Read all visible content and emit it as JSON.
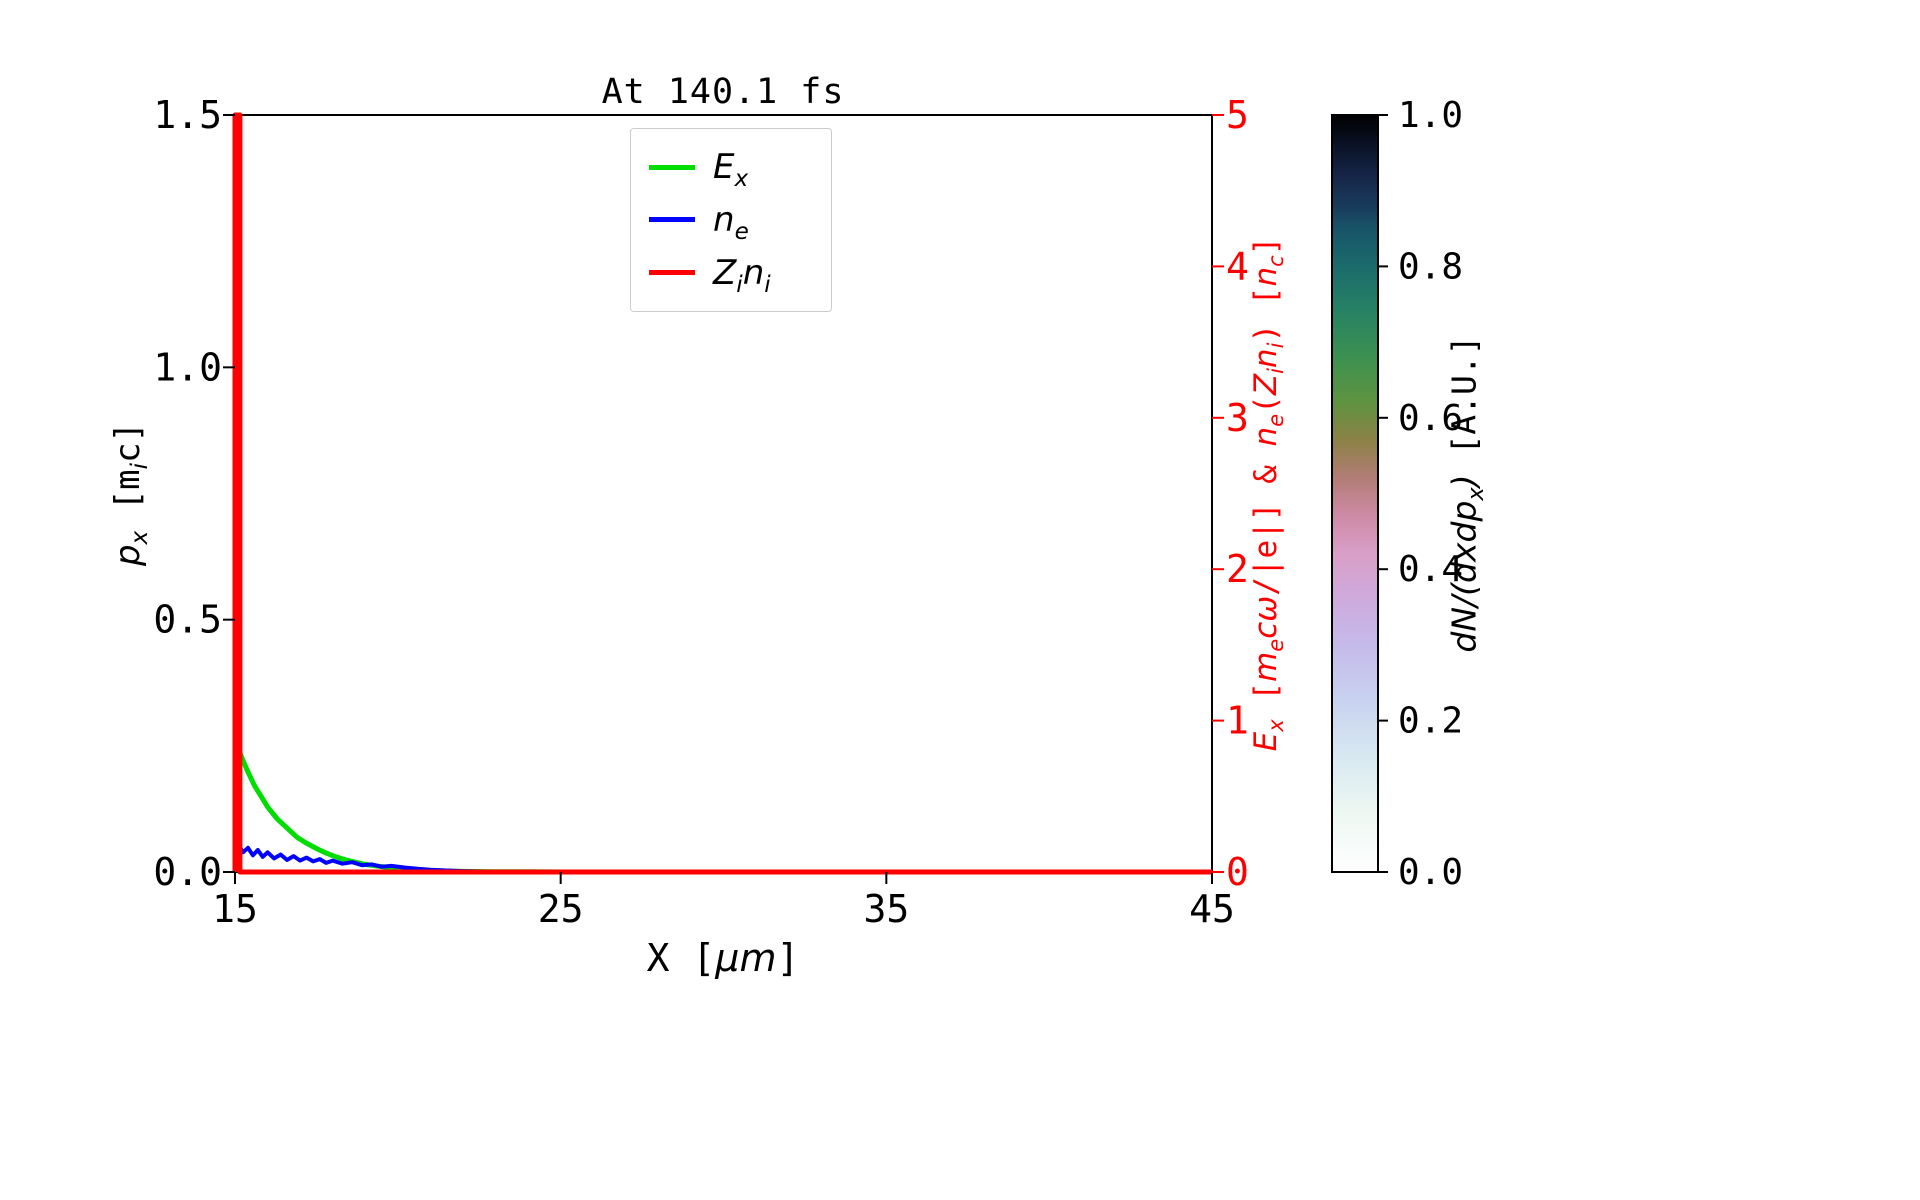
{
  "title": "At 140.1 fs",
  "axes": {
    "x": {
      "lim": [
        15,
        45
      ],
      "ticks": [
        "15",
        "25",
        "35",
        "45"
      ],
      "label_tokens": [
        {
          "t": "X ["
        },
        {
          "t": "μm",
          "i": true
        },
        {
          "t": "]"
        }
      ]
    },
    "y_left": {
      "lim": [
        0,
        1.5
      ],
      "ticks": [
        "0.0",
        "0.5",
        "1.0",
        "1.5"
      ],
      "color": "#000000",
      "label_tokens": [
        {
          "t": "p",
          "i": true,
          "sub": "x"
        },
        {
          "t": " ["
        },
        {
          "t": "m",
          "sub": "i"
        },
        {
          "t": "c]"
        }
      ]
    },
    "y_right": {
      "lim": [
        0,
        5
      ],
      "ticks": [
        "0",
        "1",
        "2",
        "3",
        "4",
        "5"
      ],
      "color": "#ff0000",
      "label_tokens": [
        {
          "t": "E",
          "i": true,
          "sub": "x"
        },
        {
          "t": " ["
        },
        {
          "t": "m",
          "i": true,
          "sub": "e"
        },
        {
          "t": "cω",
          "i": true
        },
        {
          "t": "/|e|] & "
        },
        {
          "t": "n",
          "i": true,
          "sub": "e"
        },
        {
          "t": "("
        },
        {
          "t": "Z",
          "i": true,
          "sub": "i"
        },
        {
          "t": "n",
          "i": true,
          "sub": "i"
        },
        {
          "t": ") ["
        },
        {
          "t": "n",
          "i": true,
          "sub": "c"
        },
        {
          "t": "]"
        }
      ]
    }
  },
  "legend": {
    "entries": [
      {
        "name": "E_x",
        "tokens": [
          {
            "t": "E",
            "i": true,
            "sub": "x"
          }
        ]
      },
      {
        "name": "n_e",
        "tokens": [
          {
            "t": "n",
            "i": true,
            "sub": "e"
          }
        ]
      },
      {
        "name": "Z_i n_i",
        "tokens": [
          {
            "t": "Z",
            "i": true,
            "sub": "i"
          },
          {
            "t": "n",
            "i": true,
            "sub": "i"
          }
        ]
      }
    ]
  },
  "colorbar": {
    "label_tokens": [
      {
        "t": "dN",
        "i": true
      },
      {
        "t": "/(",
        "i": true
      },
      {
        "t": "dxdp",
        "i": true,
        "sub": "x"
      },
      {
        "t": ")",
        "i": true
      },
      {
        "t": " [A.U.]"
      }
    ],
    "ticks": [
      "0.0",
      "0.2",
      "0.4",
      "0.6",
      "0.8",
      "1.0"
    ],
    "range": [
      0,
      1
    ],
    "stops": [
      [
        0.0,
        "#ffffff"
      ],
      [
        0.08,
        "#edf7f2"
      ],
      [
        0.15,
        "#d8e9f1"
      ],
      [
        0.22,
        "#c9d4f0"
      ],
      [
        0.3,
        "#c5baea"
      ],
      [
        0.36,
        "#ceaadd"
      ],
      [
        0.42,
        "#d99fc8"
      ],
      [
        0.47,
        "#cd8aa6"
      ],
      [
        0.52,
        "#b27d77"
      ],
      [
        0.57,
        "#8c8146"
      ],
      [
        0.62,
        "#5f9340"
      ],
      [
        0.68,
        "#3c9150"
      ],
      [
        0.74,
        "#278264"
      ],
      [
        0.8,
        "#1b6b6b"
      ],
      [
        0.85,
        "#175468"
      ],
      [
        0.88,
        "#193a5c"
      ],
      [
        0.92,
        "#152547"
      ],
      [
        0.96,
        "#0a1226"
      ],
      [
        1.0,
        "#000000"
      ]
    ]
  },
  "chart_data": {
    "type": "line",
    "title": "At 140.1 fs",
    "xlabel": "X [μm]",
    "ylabel_left": "p_x [m_i c]",
    "ylabel_right": "E_x [m_e cω/|e|] & n_e(Z_i n_i) [n_c]",
    "colorbar_label": "dN/(dxdp_x) [A.U.]",
    "xlim": [
      15,
      45
    ],
    "ylim_left": [
      0,
      1.5
    ],
    "ylim_right": [
      0,
      5
    ],
    "grid": false,
    "legend_position": "upper center",
    "series": [
      {
        "name": "E_x",
        "color": "#00dd00",
        "axis": "right",
        "points": [
          [
            15.0,
            0.88
          ],
          [
            15.2,
            0.76
          ],
          [
            15.4,
            0.66
          ],
          [
            15.6,
            0.57
          ],
          [
            15.8,
            0.5
          ],
          [
            16.0,
            0.43
          ],
          [
            16.3,
            0.35
          ],
          [
            16.6,
            0.29
          ],
          [
            16.9,
            0.23
          ],
          [
            17.2,
            0.19
          ],
          [
            17.5,
            0.155
          ],
          [
            17.8,
            0.125
          ],
          [
            18.1,
            0.1
          ],
          [
            18.4,
            0.08
          ],
          [
            18.7,
            0.065
          ],
          [
            19.0,
            0.05
          ],
          [
            19.4,
            0.038
          ],
          [
            19.8,
            0.028
          ],
          [
            20.2,
            0.02
          ],
          [
            20.6,
            0.014
          ],
          [
            21.0,
            0.01
          ],
          [
            21.5,
            0.006
          ],
          [
            22.0,
            0.004
          ],
          [
            23.0,
            0.002
          ],
          [
            24.0,
            0.001
          ],
          [
            25.0,
            0.0
          ],
          [
            45.0,
            0.0
          ]
        ]
      },
      {
        "name": "n_e",
        "color": "#0000ff",
        "axis": "right",
        "points": [
          [
            15.0,
            0.3
          ],
          [
            15.1,
            0.18
          ],
          [
            15.25,
            0.13
          ],
          [
            15.4,
            0.16
          ],
          [
            15.55,
            0.11
          ],
          [
            15.7,
            0.145
          ],
          [
            15.85,
            0.1
          ],
          [
            16.0,
            0.13
          ],
          [
            16.2,
            0.09
          ],
          [
            16.4,
            0.115
          ],
          [
            16.6,
            0.08
          ],
          [
            16.8,
            0.105
          ],
          [
            17.0,
            0.075
          ],
          [
            17.2,
            0.095
          ],
          [
            17.4,
            0.07
          ],
          [
            17.6,
            0.085
          ],
          [
            17.8,
            0.06
          ],
          [
            18.0,
            0.075
          ],
          [
            18.3,
            0.055
          ],
          [
            18.6,
            0.065
          ],
          [
            18.9,
            0.045
          ],
          [
            19.2,
            0.05
          ],
          [
            19.5,
            0.035
          ],
          [
            19.8,
            0.04
          ],
          [
            20.2,
            0.03
          ],
          [
            20.6,
            0.022
          ],
          [
            21.0,
            0.015
          ],
          [
            21.5,
            0.01
          ],
          [
            22.0,
            0.006
          ],
          [
            23.0,
            0.002
          ],
          [
            24.0,
            0.0
          ],
          [
            45.0,
            0.0
          ]
        ]
      },
      {
        "name": "Z_i n_i",
        "color": "#ff0000",
        "axis": "right",
        "points": [
          [
            15.0,
            0.0
          ],
          [
            15.0,
            5.0
          ],
          [
            15.15,
            5.0
          ],
          [
            15.15,
            0.0
          ],
          [
            45.0,
            0.0
          ]
        ]
      }
    ]
  }
}
